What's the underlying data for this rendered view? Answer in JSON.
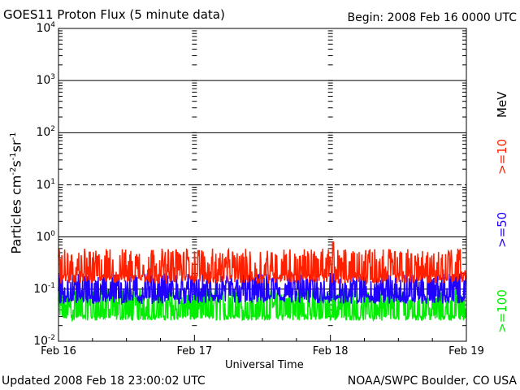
{
  "header": {
    "title": "GOES11 Proton Flux (5 minute data)",
    "begin": "Begin: 2008 Feb 16 0000 UTC"
  },
  "footer": {
    "updated": "Updated 2008 Feb 18 23:00:02 UTC",
    "credit": "NOAA/SWPC Boulder, CO USA"
  },
  "colors": {
    "ge10": "#ff2000",
    "ge50": "#2000ff",
    "ge100": "#00ee00",
    "unit": "#000000"
  },
  "chart_data": {
    "type": "line",
    "title": "GOES11 Proton Flux (5 minute data)",
    "xlabel": "Universal Time",
    "ylabel": "Particles cm-2s-1sr-1",
    "yscale": "log",
    "ylim": [
      0.01,
      10000
    ],
    "xlim_days": [
      0,
      3
    ],
    "ytick_labels": [
      {
        "base": "10",
        "exp": "4"
      },
      {
        "base": "10",
        "exp": "3"
      },
      {
        "base": "10",
        "exp": "2"
      },
      {
        "base": "10",
        "exp": "1"
      },
      {
        "base": "10",
        "exp": "0"
      },
      {
        "base": "10",
        "exp": "-1"
      },
      {
        "base": "10",
        "exp": "-2"
      }
    ],
    "xtick_labels": [
      "Feb 16",
      "Feb 17",
      "Feb 18",
      "Feb 19"
    ],
    "legend_unit": "MeV",
    "series": [
      {
        "name": ">=10",
        "color": "#ff2000",
        "baseline": 0.16,
        "peak_range": [
          0.2,
          0.6
        ],
        "max": 0.8
      },
      {
        "name": ">=50",
        "color": "#2000ff",
        "baseline": 0.065,
        "peak_range": [
          0.09,
          0.2
        ]
      },
      {
        "name": ">=100",
        "color": "#00ee00",
        "baseline": 0.04,
        "peak_range": [
          0.025,
          0.1
        ]
      }
    ]
  }
}
